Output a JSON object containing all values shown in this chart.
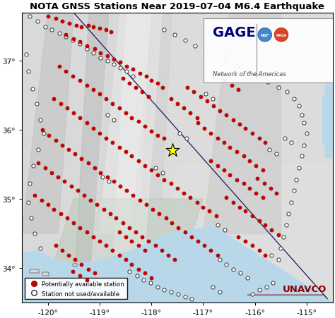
{
  "title": "NOTA GNSS Stations Near 2019–07–04 M6.4 Earthquake",
  "xlim": [
    -120.5,
    -114.5
  ],
  "ylim": [
    33.5,
    37.7
  ],
  "xticks": [
    -120,
    -119,
    -118,
    -117,
    -116,
    -115
  ],
  "yticks": [
    34,
    35,
    36,
    37
  ],
  "epicenter": [
    -117.599,
    35.705
  ],
  "diagonal_line_x": [
    -119.5,
    -114.6
  ],
  "diagonal_line_y": [
    37.7,
    33.55
  ],
  "legend_labels": [
    "Potentially available station",
    "Station not used/available"
  ],
  "gage_text": "GAGE",
  "gage_subtext": "Network of the Americas",
  "unavco_text": "UNAVCO",
  "land_color": "#e8e8e8",
  "ocean_color": "#b8d8ea",
  "terrain_light": "#f5f5f5",
  "terrain_dark": "#b0b0b0",
  "red_dot_color": "#cc0000",
  "red_dot_edge": "#990000",
  "coast_color": "#4477aa",
  "red_stations": [
    [
      -120.0,
      37.65
    ],
    [
      -119.85,
      37.62
    ],
    [
      -119.72,
      37.58
    ],
    [
      -119.58,
      37.55
    ],
    [
      -119.45,
      37.52
    ],
    [
      -119.35,
      37.5
    ],
    [
      -119.22,
      37.52
    ],
    [
      -119.12,
      37.5
    ],
    [
      -119.0,
      37.48
    ],
    [
      -118.88,
      37.45
    ],
    [
      -118.78,
      37.42
    ],
    [
      -119.65,
      37.38
    ],
    [
      -119.5,
      37.32
    ],
    [
      -119.38,
      37.28
    ],
    [
      -119.25,
      37.22
    ],
    [
      -119.1,
      37.18
    ],
    [
      -118.98,
      37.12
    ],
    [
      -118.85,
      37.08
    ],
    [
      -118.72,
      37.02
    ],
    [
      -118.6,
      36.98
    ],
    [
      -118.48,
      36.92
    ],
    [
      -118.35,
      36.88
    ],
    [
      -118.22,
      36.82
    ],
    [
      -118.1,
      36.78
    ],
    [
      -118.0,
      36.72
    ],
    [
      -117.88,
      36.68
    ],
    [
      -117.78,
      36.62
    ],
    [
      -119.78,
      36.92
    ],
    [
      -119.65,
      36.85
    ],
    [
      -119.52,
      36.78
    ],
    [
      -119.38,
      36.72
    ],
    [
      -119.25,
      36.65
    ],
    [
      -119.12,
      36.58
    ],
    [
      -119.0,
      36.52
    ],
    [
      -118.88,
      36.45
    ],
    [
      -118.75,
      36.38
    ],
    [
      -118.62,
      36.32
    ],
    [
      -118.5,
      36.25
    ],
    [
      -118.38,
      36.18
    ],
    [
      -118.25,
      36.12
    ],
    [
      -118.12,
      36.05
    ],
    [
      -118.0,
      35.98
    ],
    [
      -117.88,
      35.92
    ],
    [
      -117.75,
      35.88
    ],
    [
      -119.88,
      36.45
    ],
    [
      -119.75,
      36.38
    ],
    [
      -119.62,
      36.32
    ],
    [
      -119.5,
      36.25
    ],
    [
      -119.38,
      36.18
    ],
    [
      -119.25,
      36.1
    ],
    [
      -119.12,
      36.02
    ],
    [
      -119.0,
      35.95
    ],
    [
      -118.88,
      35.88
    ],
    [
      -118.75,
      35.82
    ],
    [
      -118.62,
      35.75
    ],
    [
      -118.5,
      35.68
    ],
    [
      -118.38,
      35.62
    ],
    [
      -118.25,
      35.55
    ],
    [
      -118.12,
      35.48
    ],
    [
      -118.0,
      35.42
    ],
    [
      -117.88,
      35.35
    ],
    [
      -117.75,
      35.28
    ],
    [
      -117.62,
      35.22
    ],
    [
      -117.5,
      35.15
    ],
    [
      -117.38,
      35.08
    ],
    [
      -117.25,
      35.02
    ],
    [
      -117.12,
      34.95
    ],
    [
      -117.0,
      34.88
    ],
    [
      -116.88,
      34.82
    ],
    [
      -116.75,
      34.75
    ],
    [
      -120.1,
      36.0
    ],
    [
      -119.98,
      35.92
    ],
    [
      -119.85,
      35.85
    ],
    [
      -119.72,
      35.78
    ],
    [
      -119.6,
      35.72
    ],
    [
      -119.48,
      35.65
    ],
    [
      -119.35,
      35.58
    ],
    [
      -119.22,
      35.52
    ],
    [
      -119.1,
      35.45
    ],
    [
      -118.98,
      35.38
    ],
    [
      -118.85,
      35.32
    ],
    [
      -118.72,
      35.25
    ],
    [
      -118.6,
      35.18
    ],
    [
      -118.48,
      35.12
    ],
    [
      -118.35,
      35.05
    ],
    [
      -118.22,
      34.98
    ],
    [
      -118.1,
      34.92
    ],
    [
      -117.98,
      34.85
    ],
    [
      -117.85,
      34.78
    ],
    [
      -117.72,
      34.72
    ],
    [
      -117.6,
      34.65
    ],
    [
      -117.48,
      34.58
    ],
    [
      -117.35,
      34.52
    ],
    [
      -117.22,
      34.45
    ],
    [
      -117.1,
      34.38
    ],
    [
      -116.98,
      34.32
    ],
    [
      -116.85,
      34.25
    ],
    [
      -116.72,
      34.18
    ],
    [
      -120.18,
      35.52
    ],
    [
      -120.05,
      35.45
    ],
    [
      -119.92,
      35.38
    ],
    [
      -119.8,
      35.32
    ],
    [
      -119.68,
      35.25
    ],
    [
      -119.55,
      35.18
    ],
    [
      -119.42,
      35.12
    ],
    [
      -119.3,
      35.05
    ],
    [
      -119.18,
      34.98
    ],
    [
      -119.05,
      34.92
    ],
    [
      -118.92,
      34.85
    ],
    [
      -118.8,
      34.78
    ],
    [
      -118.68,
      34.72
    ],
    [
      -118.55,
      34.65
    ],
    [
      -118.42,
      34.58
    ],
    [
      -118.3,
      34.52
    ],
    [
      -118.18,
      34.45
    ],
    [
      -118.05,
      34.38
    ],
    [
      -117.92,
      34.32
    ],
    [
      -117.8,
      34.25
    ],
    [
      -117.68,
      34.18
    ],
    [
      -117.55,
      34.12
    ],
    [
      -120.25,
      35.05
    ],
    [
      -120.12,
      34.98
    ],
    [
      -120.0,
      34.92
    ],
    [
      -119.88,
      34.85
    ],
    [
      -119.75,
      34.78
    ],
    [
      -119.62,
      34.72
    ],
    [
      -119.5,
      34.65
    ],
    [
      -119.38,
      34.58
    ],
    [
      -119.25,
      34.52
    ],
    [
      -119.12,
      34.45
    ],
    [
      -119.0,
      34.38
    ],
    [
      -118.88,
      34.32
    ],
    [
      -118.75,
      34.25
    ],
    [
      -118.62,
      34.18
    ],
    [
      -118.5,
      34.12
    ],
    [
      -118.38,
      34.05
    ],
    [
      -118.25,
      33.98
    ],
    [
      -118.12,
      33.92
    ],
    [
      -118.0,
      33.85
    ],
    [
      -119.85,
      34.32
    ],
    [
      -119.72,
      34.25
    ],
    [
      -119.6,
      34.18
    ],
    [
      -119.48,
      34.12
    ],
    [
      -119.35,
      34.05
    ],
    [
      -119.22,
      33.98
    ],
    [
      -119.1,
      33.92
    ],
    [
      -117.3,
      36.62
    ],
    [
      -117.18,
      36.55
    ],
    [
      -117.05,
      36.48
    ],
    [
      -116.92,
      36.42
    ],
    [
      -116.8,
      36.35
    ],
    [
      -116.68,
      36.28
    ],
    [
      -116.55,
      36.22
    ],
    [
      -116.42,
      36.15
    ],
    [
      -116.3,
      36.08
    ],
    [
      -116.18,
      36.02
    ],
    [
      -116.05,
      35.95
    ],
    [
      -115.92,
      35.88
    ],
    [
      -115.8,
      35.82
    ],
    [
      -117.1,
      36.1
    ],
    [
      -116.98,
      36.02
    ],
    [
      -116.85,
      35.95
    ],
    [
      -116.72,
      35.88
    ],
    [
      -116.6,
      35.82
    ],
    [
      -116.48,
      35.75
    ],
    [
      -116.35,
      35.68
    ],
    [
      -116.22,
      35.62
    ],
    [
      -116.1,
      35.55
    ],
    [
      -115.98,
      35.48
    ],
    [
      -115.85,
      35.42
    ],
    [
      -116.85,
      35.55
    ],
    [
      -116.72,
      35.48
    ],
    [
      -116.6,
      35.42
    ],
    [
      -116.48,
      35.35
    ],
    [
      -116.35,
      35.28
    ],
    [
      -116.22,
      35.22
    ],
    [
      -116.1,
      35.15
    ],
    [
      -115.98,
      35.08
    ],
    [
      -115.85,
      35.02
    ],
    [
      -116.55,
      35.02
    ],
    [
      -116.42,
      34.95
    ],
    [
      -116.3,
      34.88
    ],
    [
      -116.18,
      34.82
    ],
    [
      -116.05,
      34.75
    ],
    [
      -115.92,
      34.68
    ],
    [
      -115.8,
      34.62
    ],
    [
      -115.68,
      34.55
    ],
    [
      -115.55,
      34.48
    ],
    [
      -116.32,
      34.45
    ],
    [
      -116.18,
      34.38
    ],
    [
      -116.05,
      34.32
    ],
    [
      -115.92,
      34.25
    ],
    [
      -115.8,
      34.18
    ],
    [
      -118.55,
      36.75
    ],
    [
      -118.42,
      36.68
    ],
    [
      -118.3,
      36.62
    ],
    [
      -118.18,
      36.55
    ],
    [
      -118.05,
      36.48
    ],
    [
      -117.62,
      36.45
    ],
    [
      -117.5,
      36.38
    ],
    [
      -117.38,
      36.32
    ],
    [
      -117.25,
      36.25
    ],
    [
      -117.12,
      36.18
    ],
    [
      -116.58,
      36.72
    ],
    [
      -116.45,
      36.65
    ],
    [
      -116.32,
      36.58
    ],
    [
      -115.95,
      35.3
    ],
    [
      -115.82,
      35.22
    ],
    [
      -115.7,
      35.15
    ],
    [
      -115.58,
      35.08
    ],
    [
      -118.62,
      34.52
    ],
    [
      -118.5,
      34.45
    ],
    [
      -118.38,
      34.38
    ],
    [
      -118.25,
      34.32
    ],
    [
      -118.12,
      34.25
    ],
    [
      -119.52,
      33.95
    ],
    [
      -119.38,
      33.88
    ],
    [
      -119.25,
      33.82
    ]
  ],
  "white_stations": [
    [
      -120.35,
      37.65
    ],
    [
      -120.2,
      37.58
    ],
    [
      -120.05,
      37.5
    ],
    [
      -119.92,
      37.45
    ],
    [
      -119.78,
      37.4
    ],
    [
      -119.65,
      37.35
    ],
    [
      -119.52,
      37.3
    ],
    [
      -119.38,
      37.25
    ],
    [
      -119.25,
      37.18
    ],
    [
      -119.12,
      37.12
    ],
    [
      -118.98,
      37.05
    ],
    [
      -118.85,
      37.0
    ],
    [
      -118.72,
      36.95
    ],
    [
      -118.6,
      36.9
    ],
    [
      -118.48,
      36.85
    ],
    [
      -118.35,
      36.78
    ],
    [
      -120.42,
      37.1
    ],
    [
      -120.38,
      36.85
    ],
    [
      -120.3,
      36.6
    ],
    [
      -120.22,
      36.38
    ],
    [
      -120.15,
      36.15
    ],
    [
      -120.08,
      35.95
    ],
    [
      -120.18,
      35.72
    ],
    [
      -120.28,
      35.48
    ],
    [
      -120.35,
      35.22
    ],
    [
      -120.38,
      34.95
    ],
    [
      -120.32,
      34.72
    ],
    [
      -120.25,
      34.5
    ],
    [
      -120.15,
      34.28
    ],
    [
      -117.75,
      37.45
    ],
    [
      -117.55,
      37.38
    ],
    [
      -117.35,
      37.3
    ],
    [
      -117.15,
      37.22
    ],
    [
      -116.95,
      37.15
    ],
    [
      -116.75,
      37.08
    ],
    [
      -116.55,
      37.0
    ],
    [
      -116.35,
      36.92
    ],
    [
      -116.15,
      36.85
    ],
    [
      -115.95,
      36.78
    ],
    [
      -115.75,
      36.7
    ],
    [
      -115.55,
      36.62
    ],
    [
      -115.38,
      36.55
    ],
    [
      -115.25,
      36.45
    ],
    [
      -115.15,
      36.35
    ],
    [
      -115.1,
      36.22
    ],
    [
      -115.05,
      36.1
    ],
    [
      -115.0,
      35.95
    ],
    [
      -115.05,
      35.78
    ],
    [
      -115.1,
      35.62
    ],
    [
      -115.15,
      35.45
    ],
    [
      -115.2,
      35.28
    ],
    [
      -115.25,
      35.12
    ],
    [
      -115.3,
      34.95
    ],
    [
      -115.35,
      34.78
    ],
    [
      -115.4,
      34.62
    ],
    [
      -115.45,
      34.45
    ],
    [
      -115.5,
      34.28
    ],
    [
      -118.42,
      33.95
    ],
    [
      -118.28,
      33.88
    ],
    [
      -118.15,
      33.82
    ],
    [
      -118.02,
      33.78
    ],
    [
      -117.88,
      33.72
    ],
    [
      -117.75,
      33.68
    ],
    [
      -117.62,
      33.65
    ],
    [
      -117.48,
      33.62
    ],
    [
      -117.35,
      33.58
    ],
    [
      -117.22,
      33.55
    ],
    [
      -116.05,
      33.62
    ],
    [
      -115.92,
      33.68
    ],
    [
      -115.78,
      33.72
    ],
    [
      -115.65,
      33.78
    ],
    [
      -118.85,
      36.22
    ],
    [
      -118.72,
      36.15
    ],
    [
      -117.92,
      35.45
    ],
    [
      -117.78,
      35.38
    ],
    [
      -116.68,
      34.12
    ],
    [
      -116.55,
      34.05
    ],
    [
      -116.42,
      33.98
    ],
    [
      -116.28,
      33.92
    ],
    [
      -116.15,
      33.85
    ],
    [
      -115.68,
      34.18
    ],
    [
      -115.55,
      34.12
    ],
    [
      -116.72,
      34.62
    ],
    [
      -116.58,
      34.55
    ],
    [
      -116.82,
      33.72
    ],
    [
      -116.68,
      33.65
    ],
    [
      -115.72,
      35.72
    ],
    [
      -115.58,
      35.65
    ],
    [
      -117.45,
      35.95
    ],
    [
      -117.32,
      35.88
    ],
    [
      -118.95,
      35.32
    ],
    [
      -118.82,
      35.25
    ],
    [
      -116.95,
      36.52
    ],
    [
      -116.82,
      36.45
    ],
    [
      -115.42,
      35.88
    ],
    [
      -115.3,
      35.82
    ]
  ]
}
